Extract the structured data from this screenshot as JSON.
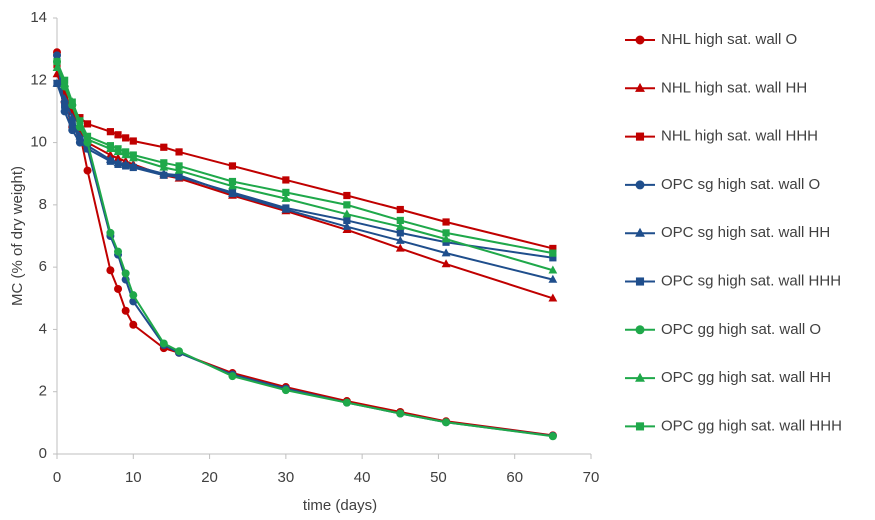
{
  "chart_data": {
    "type": "line",
    "x_label": "time (days)",
    "y_label": "MC (% of dry weight)",
    "x": [
      0,
      1,
      2,
      3,
      4,
      7,
      8,
      9,
      10,
      14,
      16,
      23,
      30,
      38,
      45,
      51,
      65
    ],
    "xlim": [
      0,
      70
    ],
    "xticks": [
      0,
      10,
      20,
      30,
      40,
      50,
      60,
      70
    ],
    "ylim": [
      0,
      14
    ],
    "yticks": [
      0,
      2,
      4,
      6,
      8,
      10,
      12,
      14
    ],
    "grid": false,
    "legend": "right",
    "series": [
      {
        "name": "NHL high sat. wall O",
        "color": "#c00000",
        "marker": "circle",
        "values": [
          12.9,
          11.3,
          10.5,
          10.3,
          9.1,
          5.9,
          5.3,
          4.6,
          4.15,
          3.4,
          3.25,
          2.6,
          2.15,
          1.7,
          1.35,
          1.05,
          0.6
        ]
      },
      {
        "name": "NHL high sat. wall HH",
        "color": "#c00000",
        "marker": "triangle",
        "values": [
          12.2,
          11.6,
          11.0,
          10.5,
          10.0,
          9.6,
          9.5,
          9.4,
          9.3,
          8.95,
          8.85,
          8.3,
          7.8,
          7.2,
          6.6,
          6.1,
          5.0
        ]
      },
      {
        "name": "NHL high sat. wall HHH",
        "color": "#c00000",
        "marker": "square",
        "values": [
          12.5,
          11.5,
          11.0,
          10.8,
          10.6,
          10.35,
          10.25,
          10.15,
          10.05,
          9.85,
          9.7,
          9.25,
          8.8,
          8.3,
          7.85,
          7.45,
          6.6
        ]
      },
      {
        "name": "OPC sg high sat. wall O",
        "color": "#1f4e8c",
        "marker": "circle",
        "values": [
          12.8,
          11.0,
          10.4,
          10.0,
          9.8,
          7.0,
          6.4,
          5.6,
          4.9,
          3.5,
          3.25,
          2.55,
          2.1,
          1.65,
          1.3,
          1.02,
          0.58
        ]
      },
      {
        "name": "OPC sg high sat. wall HH",
        "color": "#1f4e8c",
        "marker": "triangle",
        "values": [
          11.9,
          11.4,
          10.8,
          10.2,
          9.9,
          9.45,
          9.35,
          9.3,
          9.25,
          9.0,
          8.95,
          8.35,
          7.85,
          7.3,
          6.85,
          6.45,
          5.6
        ]
      },
      {
        "name": "OPC sg high sat. wall HHH",
        "color": "#1f4e8c",
        "marker": "square",
        "values": [
          11.9,
          11.2,
          10.6,
          10.1,
          9.8,
          9.4,
          9.3,
          9.25,
          9.2,
          8.95,
          8.9,
          8.4,
          7.9,
          7.5,
          7.1,
          6.8,
          6.3
        ]
      },
      {
        "name": "OPC gg high sat. wall O",
        "color": "#1fa84a",
        "marker": "circle",
        "values": [
          12.6,
          11.8,
          11.2,
          10.5,
          10.0,
          7.1,
          6.5,
          5.8,
          5.1,
          3.55,
          3.3,
          2.5,
          2.05,
          1.65,
          1.3,
          1.02,
          0.57
        ]
      },
      {
        "name": "OPC gg high sat. wall HH",
        "color": "#1fa84a",
        "marker": "triangle",
        "values": [
          12.4,
          11.9,
          11.3,
          10.6,
          10.1,
          9.8,
          9.7,
          9.6,
          9.5,
          9.2,
          9.1,
          8.6,
          8.2,
          7.7,
          7.3,
          6.9,
          5.9
        ]
      },
      {
        "name": "OPC gg high sat. wall HHH",
        "color": "#1fa84a",
        "marker": "square",
        "values": [
          12.6,
          12.0,
          11.3,
          10.7,
          10.2,
          9.9,
          9.8,
          9.7,
          9.6,
          9.35,
          9.25,
          8.75,
          8.4,
          8.0,
          7.5,
          7.1,
          6.45
        ]
      }
    ]
  }
}
